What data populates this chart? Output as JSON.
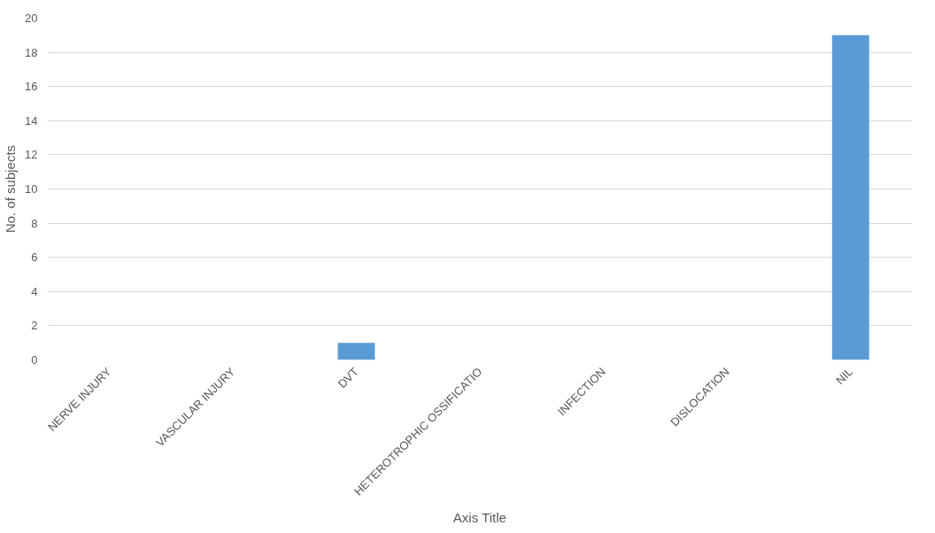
{
  "chart_data": {
    "type": "bar",
    "xlabel": "Axis Title",
    "ylabel": "No. of subjects",
    "categories": [
      "NERVE INJURY",
      "VASCULAR INJURY",
      "DVT",
      "HETEROTROPHIC OSSIFICATIO",
      "INFECTION",
      "DISLOCATION",
      "NIL"
    ],
    "values": [
      0,
      0,
      1,
      0,
      0,
      0,
      19
    ],
    "color": "#5b9bd5",
    "ylim": [
      0,
      20
    ],
    "yticks": [
      0,
      2,
      4,
      6,
      8,
      10,
      12,
      14,
      16,
      18,
      20
    ],
    "grid": "y"
  }
}
